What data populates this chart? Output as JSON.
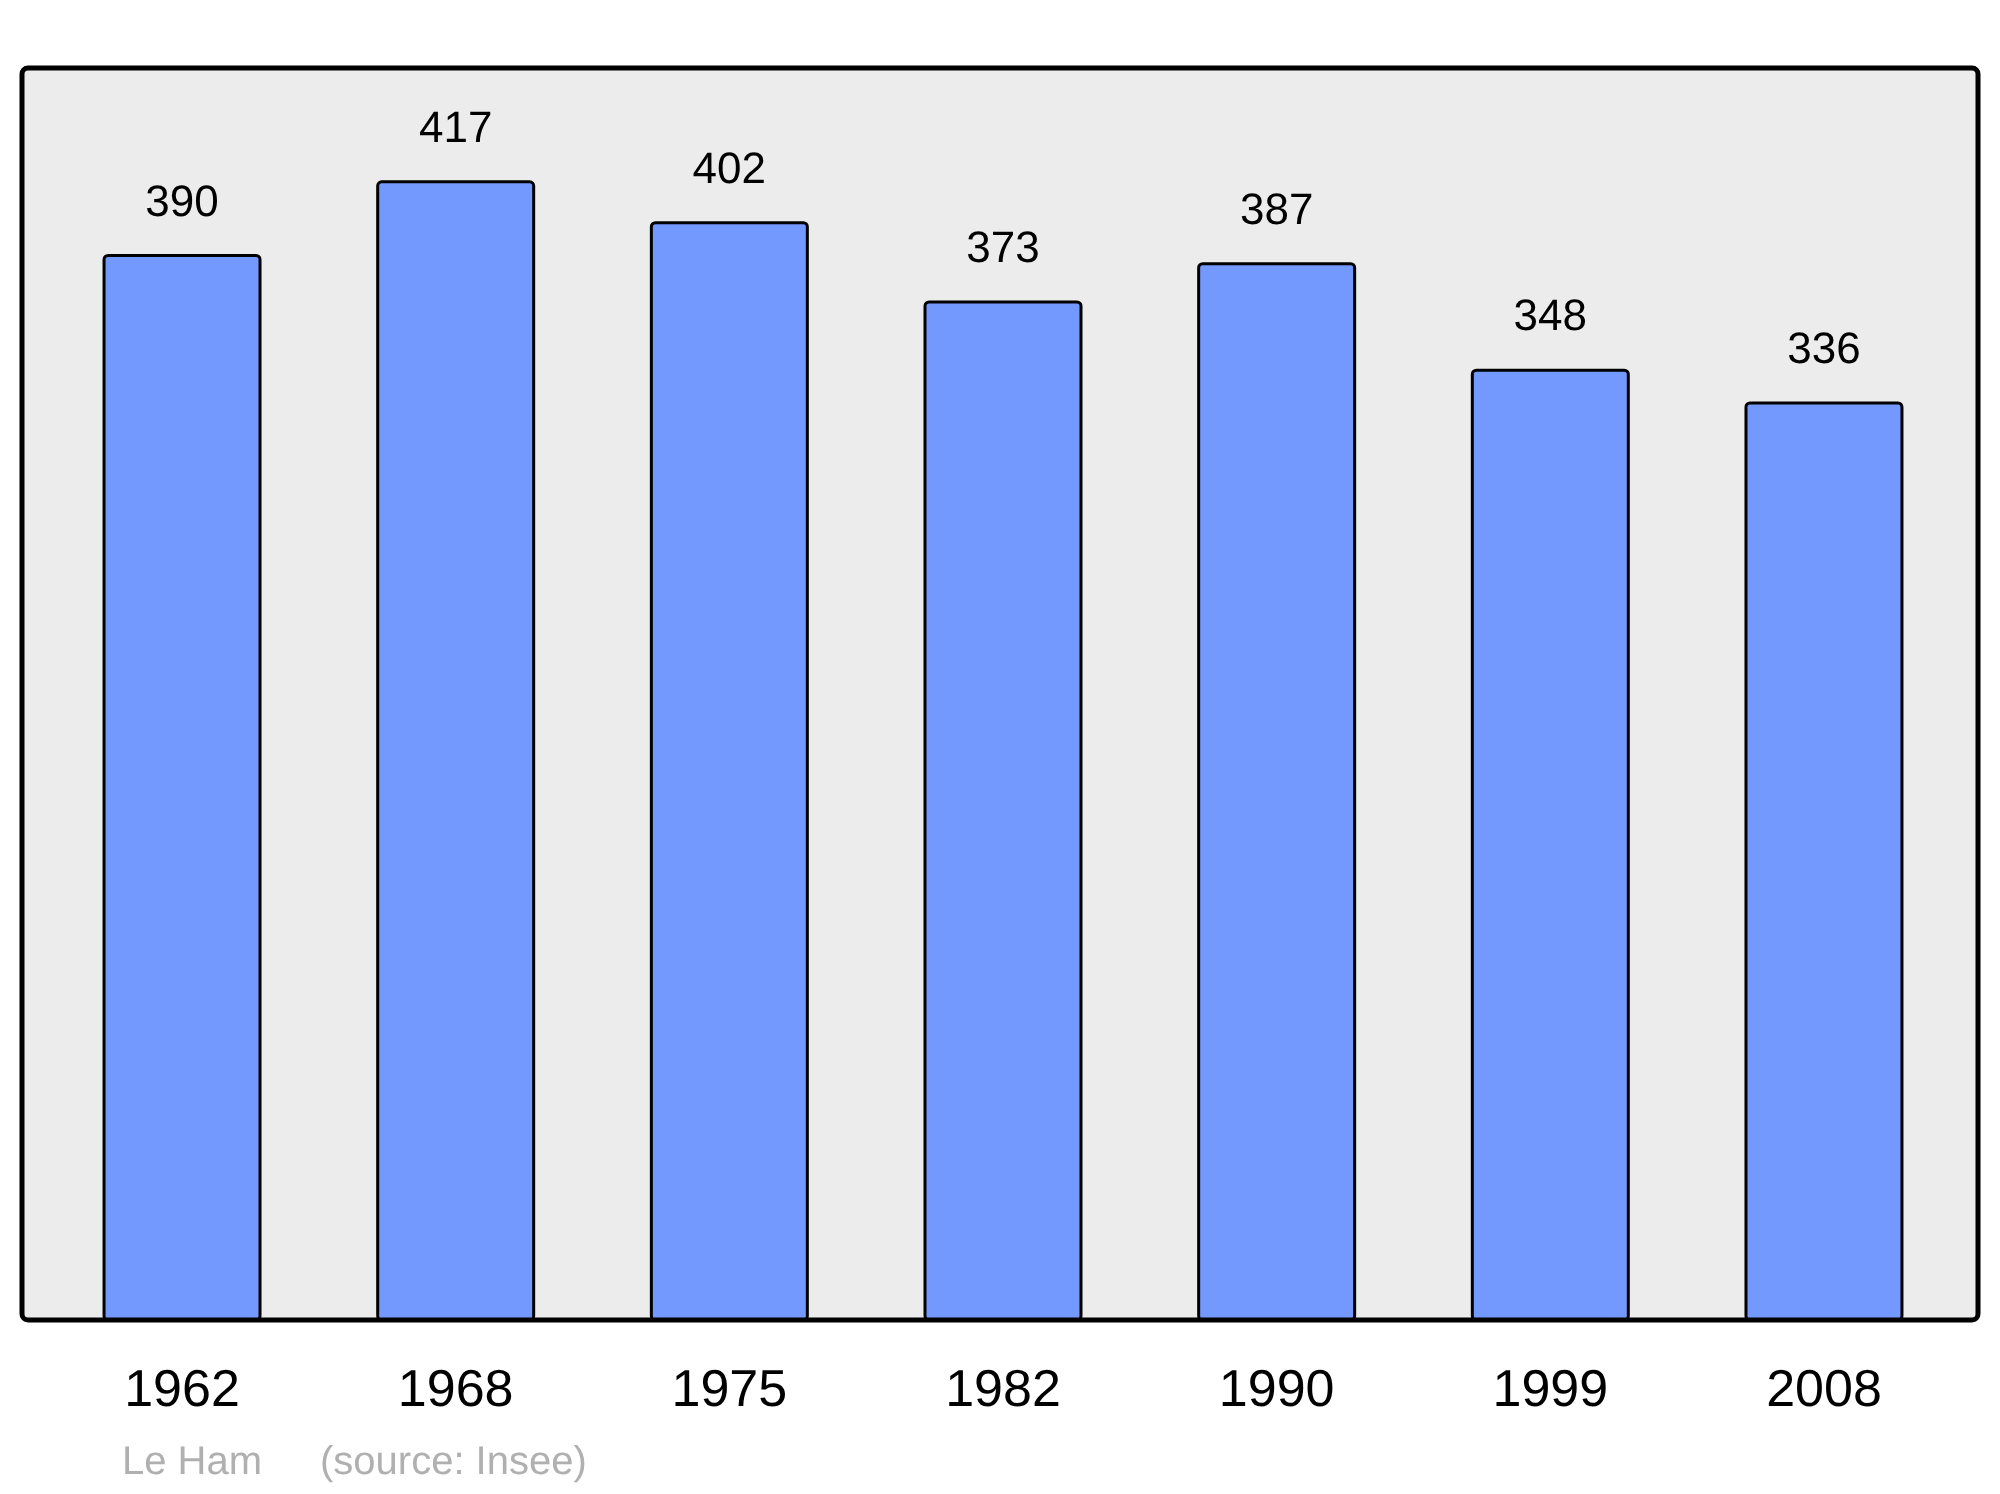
{
  "chart_data": {
    "type": "bar",
    "categories": [
      "1962",
      "1968",
      "1975",
      "1982",
      "1990",
      "1999",
      "2008"
    ],
    "values": [
      390,
      417,
      402,
      373,
      387,
      348,
      336
    ],
    "color": "#7399ff",
    "data_labels": true,
    "annotations": [
      "Le Ham",
      "(source: Insee)"
    ]
  }
}
